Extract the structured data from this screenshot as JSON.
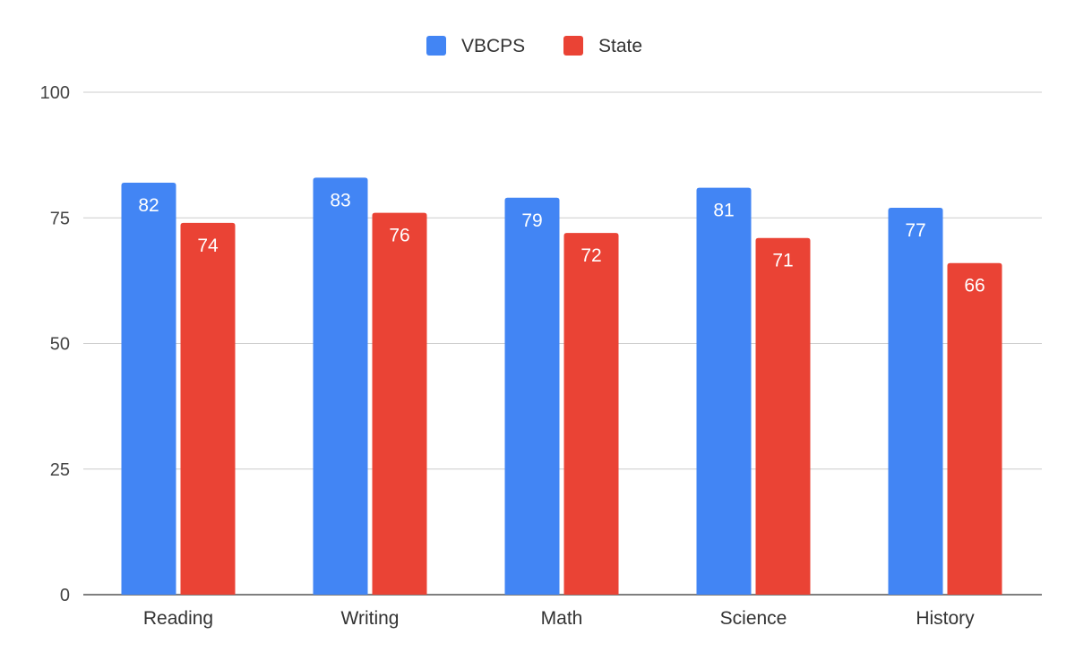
{
  "chart_data": {
    "type": "bar",
    "title": "",
    "xlabel": "",
    "ylabel": "",
    "categories": [
      "Reading",
      "Writing",
      "Math",
      "Science",
      "History"
    ],
    "series": [
      {
        "name": "VBCPS",
        "values": [
          82,
          83,
          79,
          81,
          77
        ],
        "color": "#4285F4"
      },
      {
        "name": "State",
        "values": [
          74,
          76,
          72,
          71,
          66
        ],
        "color": "#EA4335"
      }
    ],
    "ylim": [
      0,
      100
    ],
    "yticks": [
      0,
      25,
      50,
      75,
      100
    ],
    "grid": true,
    "legend": "top-center",
    "data_labels": true
  }
}
